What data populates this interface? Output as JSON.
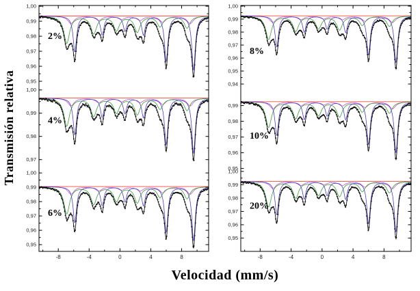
{
  "chart_data": {
    "type": "line",
    "title": "",
    "xlabel": "Velocidad (mm/s)",
    "ylabel": "Transmisión relativa",
    "x_range": [
      -10.5,
      11.5
    ],
    "x_major_ticks": [
      -8,
      -4,
      0,
      4,
      8
    ],
    "x_tick_labels": [
      "-8",
      "-4",
      "0",
      "4",
      "8"
    ],
    "x_minor_ticks": [
      -10,
      -6,
      -2,
      2,
      6,
      10
    ],
    "grid": "off",
    "legend": "none",
    "colors": {
      "baseline_red": "#f24a3e",
      "component_green": "#3a9e3a",
      "component_blue": "#4b3fc8",
      "component_magenta": "#cc50cc",
      "envelope_black": "#101010",
      "data_black": "#101010"
    },
    "components": [
      {
        "name": "sextet-outer-green",
        "color_key": "component_green",
        "width": 0.45,
        "lines": [
          {
            "x": -6.9,
            "depth": 0.018
          },
          {
            "x": -3.4,
            "depth": 0.0115
          },
          {
            "x": -0.45,
            "depth": 0.0095
          },
          {
            "x": 2.25,
            "depth": 0.0105
          },
          {
            "x": 5.2,
            "depth": 0.007
          },
          {
            "x": 8.7,
            "depth": 0.008
          }
        ]
      },
      {
        "name": "sextet-inner-blue",
        "color_key": "component_blue",
        "width": 0.27,
        "lines": [
          {
            "x": -5.85,
            "depth": 0.024
          },
          {
            "x": -2.3,
            "depth": 0.0125
          },
          {
            "x": 0.65,
            "depth": 0.01
          },
          {
            "x": 3.05,
            "depth": 0.0125
          },
          {
            "x": 6.0,
            "depth": 0.03
          },
          {
            "x": 9.55,
            "depth": 0.036
          }
        ]
      },
      {
        "name": "sextet-minor-magenta",
        "color_key": "component_magenta",
        "width": 0.5,
        "lines": [
          {
            "x": -6.35,
            "depth": 0.005
          },
          {
            "x": -2.75,
            "depth": 0.0028
          },
          {
            "x": 0.2,
            "depth": 0.0022
          },
          {
            "x": 2.6,
            "depth": 0.0028
          },
          {
            "x": 5.55,
            "depth": 0.004
          },
          {
            "x": 9.1,
            "depth": 0.005
          }
        ]
      }
    ],
    "panels": [
      {
        "label": "2%",
        "column": 0,
        "row": 0,
        "baseline": 0.9935,
        "scale": 1.0,
        "y_top": 1.0005,
        "y_bottom": 0.945,
        "y_ticks": {
          "values": [
            1.0,
            0.99,
            0.98,
            0.97,
            0.96,
            0.95
          ],
          "labels": [
            "1,00",
            "0,99",
            "0,98",
            "0,97",
            "0,96",
            "0,95"
          ]
        }
      },
      {
        "label": "4%",
        "column": 0,
        "row": 1,
        "baseline": 0.9965,
        "scale": 0.66,
        "y_top": 1.0005,
        "y_bottom": 0.9652,
        "y_ticks": {
          "values": [
            1.0,
            0.99,
            0.98,
            0.97
          ],
          "labels": [
            "1,00",
            "0,99",
            "0,98",
            "0,97"
          ]
        }
      },
      {
        "label": "6%",
        "column": 0,
        "row": 2,
        "baseline": 0.9905,
        "scale": 1.05,
        "y_top": 1.0015,
        "y_bottom": 0.9453,
        "y_ticks": {
          "values": [
            1.0,
            0.99,
            0.98,
            0.97,
            0.96,
            0.95
          ],
          "labels": [
            "1,00",
            "0,99",
            "0,98",
            "0,97",
            "0,96",
            "0,95"
          ]
        }
      },
      {
        "label": "8%",
        "column": 1,
        "row": 0,
        "baseline": 0.9925,
        "scale": 1.0,
        "y_top": 1.0005,
        "y_bottom": 0.9337,
        "y_ticks": {
          "values": [
            1.0,
            0.99,
            0.98,
            0.97,
            0.96,
            0.95,
            0.94
          ],
          "labels": [
            "1,00",
            "0,99",
            "0,98",
            "0,97",
            "0,96",
            "0,95",
            "0,94"
          ]
        }
      },
      {
        "label": "10%",
        "column": 1,
        "row": 1,
        "baseline": 0.9925,
        "scale": 0.9,
        "y_top": 0.9985,
        "y_bottom": 0.9494,
        "y_ticks": {
          "values": [
            0.99,
            0.98,
            0.97,
            0.96,
            0.95
          ],
          "labels": [
            "0,99",
            "0,98",
            "0,97",
            "0,96",
            "0,95"
          ]
        }
      },
      {
        "label": "20%",
        "column": 1,
        "row": 2,
        "baseline": 0.9925,
        "scale": 1.05,
        "y_top": 1.0015,
        "y_bottom": 0.94,
        "y_ticks": {
          "values": [
            1.0,
            0.99,
            0.98,
            0.97,
            0.96,
            0.95
          ],
          "labels": [
            "1,00",
            "0,99",
            "0,98",
            "0,97",
            "0,96",
            "0,95"
          ]
        }
      }
    ]
  }
}
